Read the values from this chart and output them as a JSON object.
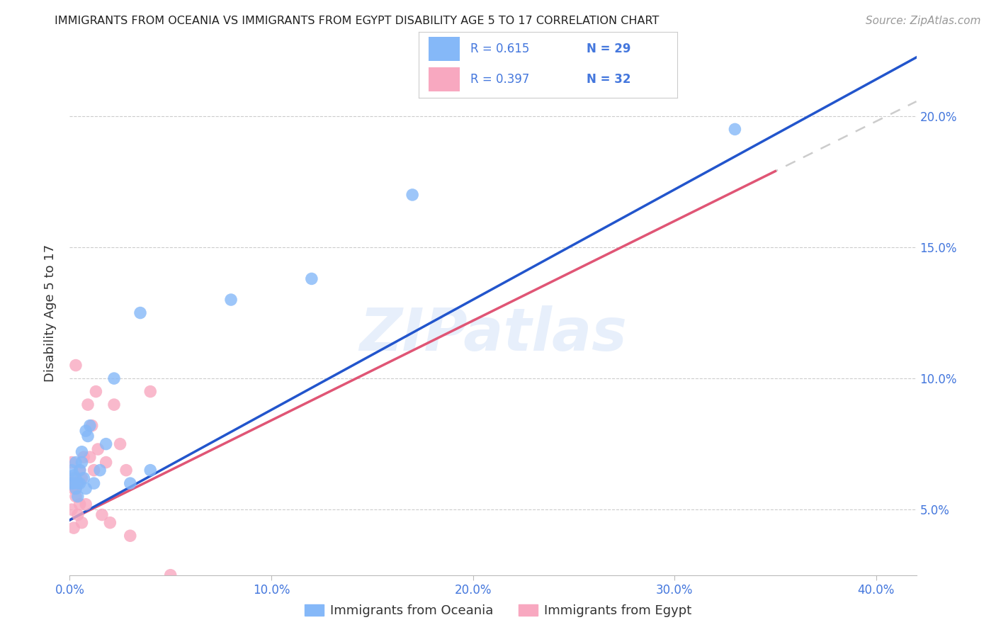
{
  "title": "IMMIGRANTS FROM OCEANIA VS IMMIGRANTS FROM EGYPT DISABILITY AGE 5 TO 17 CORRELATION CHART",
  "source": "Source: ZipAtlas.com",
  "ylabel": "Disability Age 5 to 17",
  "xlim": [
    0.0,
    0.42
  ],
  "ylim": [
    0.025,
    0.225
  ],
  "xticks": [
    0.0,
    0.1,
    0.2,
    0.3,
    0.4
  ],
  "yticks": [
    0.05,
    0.1,
    0.15,
    0.2
  ],
  "xticklabels": [
    "0.0%",
    "10.0%",
    "20.0%",
    "30.0%",
    "40.0%"
  ],
  "right_yticklabels": [
    "5.0%",
    "10.0%",
    "15.0%",
    "20.0%"
  ],
  "watermark": "ZIPatlas",
  "legend_oceania": "Immigrants from Oceania",
  "legend_egypt": "Immigrants from Egypt",
  "r_oceania": "0.615",
  "n_oceania": "29",
  "r_egypt": "0.397",
  "n_egypt": "32",
  "color_oceania": "#85b8f8",
  "color_egypt": "#f8a8c0",
  "color_line_oceania": "#2255cc",
  "color_line_egypt": "#e05575",
  "color_dashed": "#cccccc",
  "title_color": "#222222",
  "tick_color": "#4477dd",
  "background_color": "#ffffff",
  "oceania_x": [
    0.001,
    0.001,
    0.002,
    0.002,
    0.003,
    0.003,
    0.003,
    0.004,
    0.004,
    0.005,
    0.005,
    0.006,
    0.006,
    0.007,
    0.008,
    0.008,
    0.009,
    0.01,
    0.012,
    0.015,
    0.018,
    0.022,
    0.03,
    0.035,
    0.04,
    0.08,
    0.12,
    0.17,
    0.33
  ],
  "oceania_y": [
    0.065,
    0.06,
    0.06,
    0.063,
    0.058,
    0.062,
    0.068,
    0.06,
    0.055,
    0.065,
    0.06,
    0.068,
    0.072,
    0.062,
    0.058,
    0.08,
    0.078,
    0.082,
    0.06,
    0.065,
    0.075,
    0.1,
    0.06,
    0.125,
    0.065,
    0.13,
    0.138,
    0.17,
    0.195
  ],
  "egypt_x": [
    0.001,
    0.001,
    0.001,
    0.002,
    0.002,
    0.002,
    0.003,
    0.003,
    0.003,
    0.004,
    0.004,
    0.005,
    0.005,
    0.006,
    0.006,
    0.007,
    0.008,
    0.009,
    0.01,
    0.011,
    0.012,
    0.013,
    0.014,
    0.016,
    0.018,
    0.02,
    0.022,
    0.025,
    0.028,
    0.03,
    0.04,
    0.05
  ],
  "egypt_y": [
    0.068,
    0.05,
    0.06,
    0.062,
    0.043,
    0.058,
    0.055,
    0.058,
    0.105,
    0.06,
    0.048,
    0.065,
    0.052,
    0.062,
    0.045,
    0.07,
    0.052,
    0.09,
    0.07,
    0.082,
    0.065,
    0.095,
    0.073,
    0.048,
    0.068,
    0.045,
    0.09,
    0.075,
    0.065,
    0.04,
    0.095,
    0.025
  ]
}
